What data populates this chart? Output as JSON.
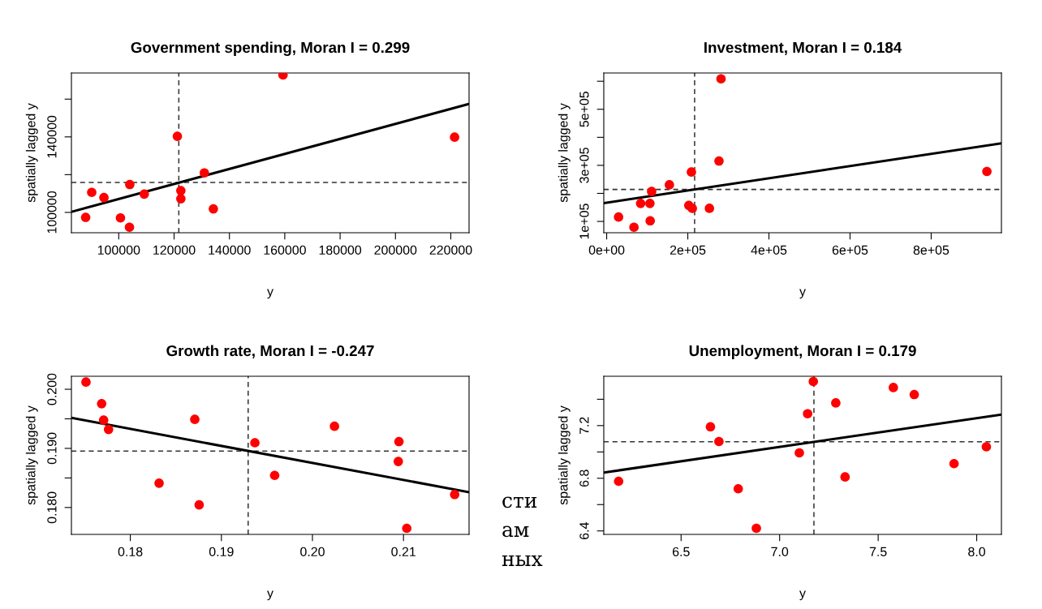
{
  "chart_data": [
    {
      "type": "scatter",
      "title": "Government spending, Moran I = 0.299",
      "xlabel": "y",
      "ylabel": "spatially lagged y",
      "xlim": [
        82900,
        226600
      ],
      "ylim": [
        89230,
        173850
      ],
      "xticks": [
        100000,
        120000,
        140000,
        160000,
        180000,
        200000,
        220000
      ],
      "yticks": [
        100000,
        {
          "value": 120000,
          "label": null
        },
        140000,
        {
          "value": 160000,
          "label": null
        }
      ],
      "series": [
        {
          "marker": "circle",
          "color": "#ff0000",
          "x": [
            88040,
            90240,
            94650,
            100630,
            103880,
            103990,
            109230,
            121190,
            122450,
            122450,
            130940,
            134200,
            159370,
            221370
          ],
          "values": [
            97380,
            110620,
            107850,
            97080,
            92150,
            114770,
            109690,
            140310,
            111540,
            107230,
            120920,
            101850,
            172770,
            139850
          ]
        },
        {
          "type": "line",
          "color": "#000000",
          "x": [
            82900,
            226600
          ],
          "values": [
            100300,
            157500
          ]
        }
      ],
      "ref_lines": [
        {
          "axis": "x",
          "value": 121710,
          "line_style": "dashed",
          "color": "#333333"
        },
        {
          "axis": "y",
          "value": 115850,
          "line_style": "dashed",
          "color": "#333333"
        }
      ]
    },
    {
      "type": "scatter",
      "title": "Investment, Moran I = 0.184",
      "xlabel": "y",
      "ylabel": "spatially lagged y",
      "xlim": [
        -7160,
        973200
      ],
      "ylim": [
        59600,
        629500
      ],
      "xticks": [
        {
          "value": 0,
          "label": "0e+00"
        },
        {
          "value": 200000,
          "label": "2e+05"
        },
        {
          "value": 400000,
          "label": "4e+05"
        },
        {
          "value": 600000,
          "label": "6e+05"
        },
        {
          "value": 800000,
          "label": "8e+05"
        }
      ],
      "yticks": [
        {
          "value": 100000,
          "label": "1e+05"
        },
        {
          "value": 200000,
          "label": null
        },
        {
          "value": 300000,
          "label": "3e+05"
        },
        {
          "value": 400000,
          "label": null
        },
        {
          "value": 500000,
          "label": "5e+05"
        },
        {
          "value": 600000,
          "label": null
        }
      ],
      "series": [
        {
          "marker": "circle",
          "color": "#ff0000",
          "x": [
            29340,
            67270,
            83720,
            106600,
            107300,
            110900,
            154600,
            202500,
            211100,
            253300,
            208900,
            276900,
            281900,
            937400
          ],
          "values": [
            115500,
            79300,
            164200,
            164200,
            102100,
            206700,
            230500,
            156900,
            146600,
            146600,
            276100,
            315500,
            608700,
            278200
          ]
        },
        {
          "type": "line",
          "color": "#000000",
          "x": [
            -7160,
            973200
          ],
          "values": [
            165200,
            378600
          ]
        }
      ],
      "ref_lines": [
        {
          "axis": "x",
          "value": 216800,
          "line_style": "dashed",
          "color": "#333333"
        },
        {
          "axis": "y",
          "value": 214000,
          "line_style": "dashed",
          "color": "#333333"
        }
      ]
    },
    {
      "type": "scatter",
      "title": "Growth rate, Moran I = -0.247",
      "xlabel": "y",
      "ylabel": "spatially lagged y",
      "xlim": [
        0.17353,
        0.2172
      ],
      "ylim": [
        0.17545,
        0.2022
      ],
      "xticks": [
        {
          "value": 0.18,
          "label": "0.18"
        },
        {
          "value": 0.19,
          "label": "0.19"
        },
        {
          "value": 0.2,
          "label": "0.20"
        },
        {
          "value": 0.21,
          "label": "0.21"
        }
      ],
      "yticks": [
        {
          "value": 0.18,
          "label": "0.180"
        },
        {
          "value": 0.185,
          "label": null
        },
        {
          "value": 0.19,
          "label": "0.190"
        },
        {
          "value": 0.195,
          "label": null
        },
        {
          "value": 0.2,
          "label": "0.200"
        }
      ],
      "series": [
        {
          "marker": "circle",
          "color": "#ff0000",
          "x": [
            0.17513,
            0.17685,
            0.17707,
            0.17761,
            0.18316,
            0.18708,
            0.18756,
            0.19368,
            0.19585,
            0.20242,
            0.2095,
            0.20943,
            0.21036,
            0.21562
          ],
          "values": [
            0.20122,
            0.19756,
            0.19477,
            0.1932,
            0.18411,
            0.19491,
            0.18044,
            0.19095,
            0.18543,
            0.19374,
            0.19115,
            0.18778,
            0.17648,
            0.1822
          ]
        },
        {
          "type": "line",
          "color": "#000000",
          "x": [
            0.17353,
            0.2172
          ],
          "values": [
            0.19516,
            0.18259
          ]
        }
      ],
      "ref_lines": [
        {
          "axis": "x",
          "value": 0.19294,
          "line_style": "dashed",
          "color": "#333333"
        },
        {
          "axis": "y",
          "value": 0.18954,
          "line_style": "dashed",
          "color": "#333333"
        }
      ],
      "annotations": [
        "сти",
        "ам",
        "ных"
      ]
    },
    {
      "type": "scatter",
      "title": "Unemployment, Moran I = 0.179",
      "xlabel": "y",
      "ylabel": "spatially lagged y",
      "xlim": [
        6.1077,
        8.1254
      ],
      "ylim": [
        6.3736,
        7.5747
      ],
      "xticks": [
        6.5,
        {
          "value": 7.0,
          "label": "7.0"
        },
        7.5,
        {
          "value": 8.0,
          "label": "8.0"
        }
      ],
      "yticks": [
        6.4,
        {
          "value": 6.6,
          "label": null
        },
        6.8,
        {
          "value": 7.0,
          "label": null
        },
        7.2,
        {
          "value": 7.4,
          "label": null
        }
      ],
      "series": [
        {
          "marker": "circle",
          "color": "#ff0000",
          "x": [
            6.183,
            6.649,
            6.692,
            6.79,
            6.882,
            7.1,
            7.142,
            7.171,
            7.285,
            7.332,
            7.577,
            7.683,
            7.885,
            8.049
          ],
          "values": [
            6.777,
            7.191,
            7.079,
            6.72,
            6.42,
            6.993,
            7.29,
            7.535,
            7.372,
            6.81,
            7.489,
            7.436,
            6.911,
            7.039
          ]
        },
        {
          "type": "line",
          "color": "#000000",
          "x": [
            6.1077,
            8.1254
          ],
          "values": [
            6.843,
            7.284
          ]
        }
      ],
      "ref_lines": [
        {
          "axis": "x",
          "value": 7.174,
          "line_style": "dashed",
          "color": "#333333"
        },
        {
          "axis": "y",
          "value": 7.077,
          "line_style": "dashed",
          "color": "#333333"
        }
      ]
    }
  ]
}
